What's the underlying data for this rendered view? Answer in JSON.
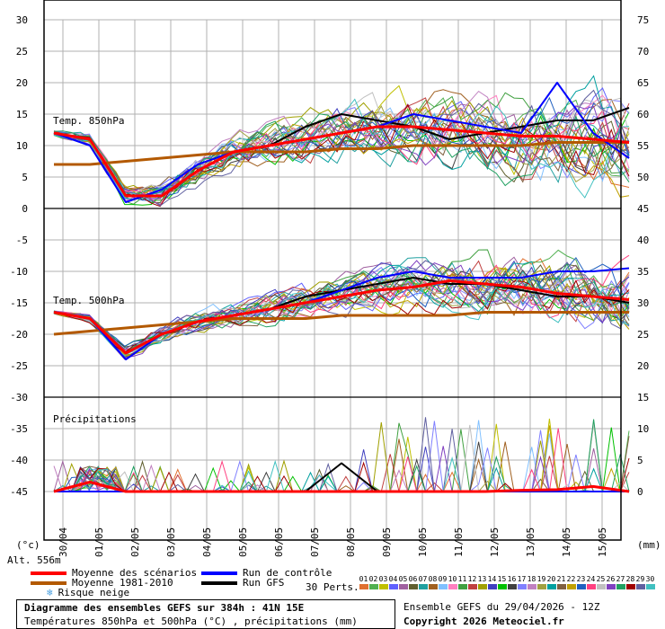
{
  "left_axis_ticks": [
    "30",
    "25",
    "20",
    "15",
    "10",
    "5",
    "0",
    "-5",
    "-10",
    "-15",
    "-20",
    "-25",
    "-30",
    "-35",
    "-40",
    "-45"
  ],
  "right_axis_ticks": [
    "75",
    "70",
    "65",
    "60",
    "55",
    "50",
    "45",
    "40",
    "35",
    "30",
    "25",
    "20",
    "15",
    "10",
    "5",
    "0"
  ],
  "x_ticks": [
    "30/04",
    "01/05",
    "02/05",
    "03/05",
    "04/05",
    "05/05",
    "06/05",
    "07/05",
    "08/05",
    "09/05",
    "10/05",
    "11/05",
    "12/05",
    "13/05",
    "14/05",
    "15/05"
  ],
  "unit_left": "(°c)",
  "unit_right": "(mm)",
  "altitude": "Alt. 556m",
  "panels": {
    "t850": "Temp. 850hPa",
    "t500": "Temp. 500hPa",
    "precip": "Précipitations"
  },
  "legend": {
    "mean": "Moyenne des scénarios",
    "climo": "Moyenne 1981-2010",
    "snow": "Risque neige",
    "control": "Run de contrôle",
    "gfs": "Run GFS",
    "perts": "30 Perts."
  },
  "colors": {
    "mean": "#ff0000",
    "climo": "#b35900",
    "control": "#0000ff",
    "gfs": "#000000",
    "grid": "#b0b0b0",
    "perturbations": [
      "#e07030",
      "#50b050",
      "#c0c000",
      "#6060ff",
      "#a060a0",
      "#606030",
      "#20a0a0",
      "#a06020",
      "#80c0ff",
      "#ff80c0",
      "#40a040",
      "#c04040",
      "#a0a000",
      "#4040c0",
      "#00c000",
      "#404040",
      "#8080ff",
      "#c080c0",
      "#a0a040",
      "#00a0a0",
      "#806040",
      "#c0a000",
      "#2060c0",
      "#ff4080",
      "#c0c0c0",
      "#8040c0",
      "#20a060",
      "#a00000",
      "#6060a0",
      "#40c0c0"
    ]
  },
  "pert_ids": [
    "01",
    "02",
    "03",
    "04",
    "05",
    "06",
    "07",
    "08",
    "09",
    "10",
    "11",
    "12",
    "13",
    "14",
    "15",
    "16",
    "17",
    "18",
    "19",
    "20",
    "21",
    "22",
    "23",
    "24",
    "25",
    "26",
    "27",
    "28",
    "29",
    "30"
  ],
  "footer": {
    "title": "Diagramme des ensembles GEFS sur 384h : 41N 15E",
    "subtitle": "Températures 850hPa et 500hPa (°C) , précipitations (mm)",
    "run": "Ensemble GEFS du 29/04/2026 - 12Z",
    "copyright": "Copyright 2026 Meteociel.fr"
  },
  "chart_data": [
    {
      "type": "line",
      "title": "Temp. 850hPa",
      "x": [
        "29/04 12Z",
        "30/04",
        "01/05",
        "02/05",
        "03/05",
        "04/05",
        "05/05",
        "06/05",
        "07/05",
        "08/05",
        "09/05",
        "10/05",
        "11/05",
        "12/05",
        "13/05",
        "14/05",
        "15/05"
      ],
      "ylabel": "(°c)",
      "ylim": [
        0,
        30
      ],
      "series": [
        {
          "name": "Moyenne des scénarios",
          "values": [
            12,
            11,
            2,
            2,
            6,
            9,
            10,
            11,
            12,
            13,
            13,
            12.5,
            12,
            11.5,
            11.5,
            11,
            10.5
          ]
        },
        {
          "name": "Moyenne 1981-2010",
          "values": [
            7,
            7,
            7.5,
            8,
            8.5,
            9,
            9,
            9,
            9.5,
            9.5,
            10,
            10,
            10,
            10,
            10.5,
            10.5,
            10.5
          ]
        },
        {
          "name": "Run de contrôle",
          "values": [
            12,
            10,
            1,
            3,
            7,
            9,
            10,
            11,
            12,
            13,
            15,
            14,
            13,
            12,
            20,
            12,
            8
          ]
        },
        {
          "name": "Run GFS",
          "values": [
            12,
            11,
            2,
            2,
            6,
            9,
            10,
            13,
            15,
            14,
            13,
            11,
            12,
            13,
            14,
            14,
            16
          ]
        }
      ]
    },
    {
      "type": "line",
      "title": "Temp. 500hPa",
      "x": [
        "29/04 12Z",
        "30/04",
        "01/05",
        "02/05",
        "03/05",
        "04/05",
        "05/05",
        "06/05",
        "07/05",
        "08/05",
        "09/05",
        "10/05",
        "11/05",
        "12/05",
        "13/05",
        "14/05",
        "15/05"
      ],
      "ylabel": "(°c)",
      "ylim": [
        -30,
        -5
      ],
      "series": [
        {
          "name": "Moyenne des scénarios",
          "values": [
            -16.5,
            -17.5,
            -23,
            -20,
            -18,
            -17,
            -16,
            -15,
            -14,
            -13,
            -12.5,
            -11.5,
            -12,
            -12.5,
            -13.5,
            -14,
            -14.5
          ]
        },
        {
          "name": "Moyenne 1981-2010",
          "values": [
            -20,
            -19.5,
            -19,
            -18.5,
            -18,
            -17.5,
            -17.5,
            -17.5,
            -17,
            -17,
            -17,
            -17,
            -16.5,
            -16.5,
            -16.5,
            -16.5,
            -16.5
          ]
        },
        {
          "name": "Run de contrôle",
          "values": [
            -16.5,
            -17.5,
            -24,
            -20,
            -18,
            -17,
            -16,
            -15,
            -13,
            -11,
            -10,
            -11,
            -11,
            -11,
            -10,
            -10,
            -9.5
          ]
        },
        {
          "name": "Run GFS",
          "values": [
            -16.5,
            -17.5,
            -23,
            -20,
            -18,
            -17,
            -16,
            -14,
            -13,
            -12,
            -11,
            -12,
            -12,
            -13,
            -14,
            -14,
            -15
          ]
        }
      ]
    },
    {
      "type": "line",
      "title": "Précipitations",
      "x": [
        "29/04 12Z",
        "30/04",
        "01/05",
        "02/05",
        "03/05",
        "04/05",
        "05/05",
        "06/05",
        "07/05",
        "08/05",
        "09/05",
        "10/05",
        "11/05",
        "12/05",
        "13/05",
        "14/05",
        "15/05"
      ],
      "ylabel": "(mm)",
      "ylim": [
        0,
        15
      ],
      "series": [
        {
          "name": "Moyenne des scénarios",
          "values": [
            0,
            1.5,
            0,
            0,
            0,
            0,
            0,
            0,
            0,
            0,
            0,
            0,
            0,
            0.2,
            0.3,
            0.8,
            0
          ]
        },
        {
          "name": "Run de contrôle",
          "values": [
            0,
            0,
            0,
            0,
            0,
            0,
            0,
            0,
            0,
            0,
            0,
            0,
            0,
            0,
            0,
            0,
            0
          ]
        },
        {
          "name": "Run GFS",
          "values": [
            0,
            0,
            0,
            0,
            0,
            0,
            0,
            0,
            4.5,
            0,
            0,
            0,
            0,
            0,
            0,
            0,
            0
          ]
        }
      ]
    }
  ]
}
